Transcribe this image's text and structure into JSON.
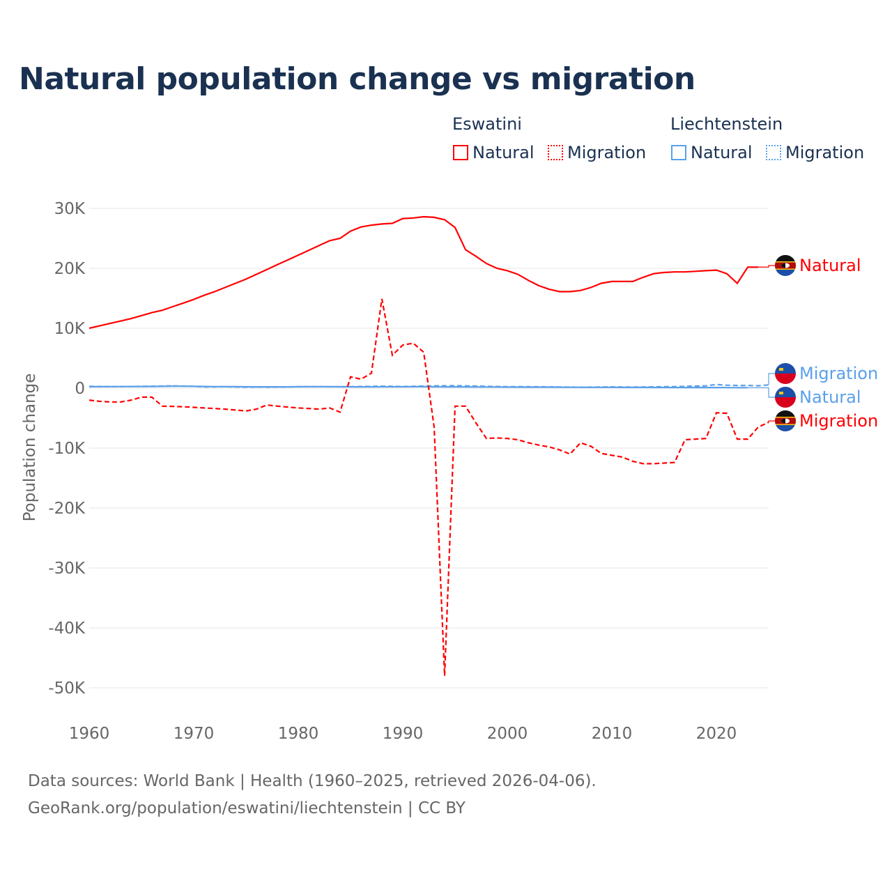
{
  "title": "Natural population change vs migration",
  "legend": {
    "groups": [
      {
        "name": "Eswatini",
        "color": "#ff0000"
      },
      {
        "name": "Liechtenstein",
        "color": "#5aa0ea"
      }
    ],
    "natural_label": "Natural",
    "migration_label": "Migration"
  },
  "footer": {
    "line1": "Data sources: World Bank | Health (1960–2025, retrieved 2026-04-06).",
    "line2": "GeoRank.org/population/eswatini/liechtenstein | CC BY"
  },
  "chart_data": {
    "type": "line",
    "title": "Natural population change vs migration",
    "xlabel": "",
    "ylabel": "Population change",
    "xlim": [
      1960,
      2025
    ],
    "ylim": [
      -50000,
      30000
    ],
    "x_ticks": [
      1960,
      1970,
      1980,
      1990,
      2000,
      2010,
      2020
    ],
    "y_ticks": [
      {
        "v": 30000,
        "l": "30K"
      },
      {
        "v": 20000,
        "l": "20K"
      },
      {
        "v": 10000,
        "l": "10K"
      },
      {
        "v": 0,
        "l": "0"
      },
      {
        "v": -10000,
        "l": "-10K"
      },
      {
        "v": -20000,
        "l": "-20K"
      },
      {
        "v": -30000,
        "l": "-30K"
      },
      {
        "v": -40000,
        "l": "-40K"
      },
      {
        "v": -50000,
        "l": "-50K"
      }
    ],
    "grid": true,
    "series": [
      {
        "name": "Eswatini Natural",
        "label": "Natural",
        "color": "#ff0000",
        "dash": false,
        "start": 1960,
        "values": [
          10000,
          10400,
          10800,
          11200,
          11600,
          12100,
          12600,
          13000,
          13600,
          14200,
          14800,
          15500,
          16100,
          16800,
          17500,
          18200,
          19000,
          19800,
          20600,
          21400,
          22200,
          23000,
          23800,
          24600,
          25000,
          26200,
          26900,
          27200,
          27400,
          27500,
          28300,
          28400,
          28600,
          28500,
          28100,
          26800,
          23100,
          22000,
          20800,
          20000,
          19600,
          19000,
          18000,
          17100,
          16500,
          16100,
          16100,
          16300,
          16800,
          17500,
          17800,
          17800,
          17800,
          18500,
          19100,
          19300,
          19400,
          19400,
          19500,
          19600,
          19700,
          19100,
          17500,
          20200,
          20200
        ]
      },
      {
        "name": "Eswatini Migration",
        "label": "Migration",
        "color": "#ff0000",
        "dash": true,
        "start": 1960,
        "values": [
          -2000,
          -2200,
          -2300,
          -2300,
          -2000,
          -1500,
          -1500,
          -3000,
          -3050,
          -3100,
          -3200,
          -3300,
          -3400,
          -3500,
          -3650,
          -3800,
          -3500,
          -2800,
          -3000,
          -3150,
          -3300,
          -3400,
          -3500,
          -3300,
          -4000,
          1900,
          1500,
          2500,
          14900,
          5500,
          7200,
          7500,
          6000,
          -6500,
          -48000,
          -3000,
          -3000,
          -5800,
          -8400,
          -8300,
          -8400,
          -8600,
          -9100,
          -9500,
          -9800,
          -10300,
          -11000,
          -9100,
          -9700,
          -10900,
          -11200,
          -11500,
          -12200,
          -12600,
          -12600,
          -12500,
          -12400,
          -8600,
          -8500,
          -8400,
          -4100,
          -4200,
          -8500,
          -8500,
          -6500,
          -5700
        ]
      },
      {
        "name": "Liechtenstein Natural",
        "label": "Natural",
        "color": "#5aa0ea",
        "dash": false,
        "start": 1960,
        "values": [
          250,
          250,
          260,
          270,
          280,
          280,
          280,
          300,
          320,
          320,
          300,
          280,
          260,
          250,
          240,
          230,
          220,
          220,
          220,
          220,
          230,
          240,
          240,
          240,
          230,
          220,
          220,
          220,
          230,
          230,
          230,
          240,
          240,
          230,
          220,
          220,
          210,
          200,
          200,
          200,
          190,
          180,
          180,
          170,
          170,
          160,
          150,
          150,
          140,
          140,
          140,
          130,
          130,
          130,
          120,
          120,
          110,
          110,
          100,
          100,
          100,
          90,
          80,
          80
        ]
      },
      {
        "name": "Liechtenstein Migration",
        "label": "Migration",
        "color": "#5aa0ea",
        "dash": true,
        "start": 1960,
        "values": [
          300,
          280,
          250,
          260,
          280,
          300,
          320,
          350,
          380,
          350,
          300,
          200,
          220,
          240,
          200,
          180,
          200,
          180,
          200,
          220,
          240,
          260,
          250,
          230,
          240,
          260,
          280,
          300,
          320,
          300,
          280,
          300,
          350,
          380,
          400,
          420,
          380,
          350,
          300,
          280,
          260,
          250,
          240,
          230,
          220,
          200,
          180,
          160,
          180,
          200,
          220,
          200,
          180,
          200,
          220,
          240,
          260,
          300,
          350,
          400,
          600,
          500,
          450,
          450,
          400,
          550
        ]
      }
    ]
  }
}
